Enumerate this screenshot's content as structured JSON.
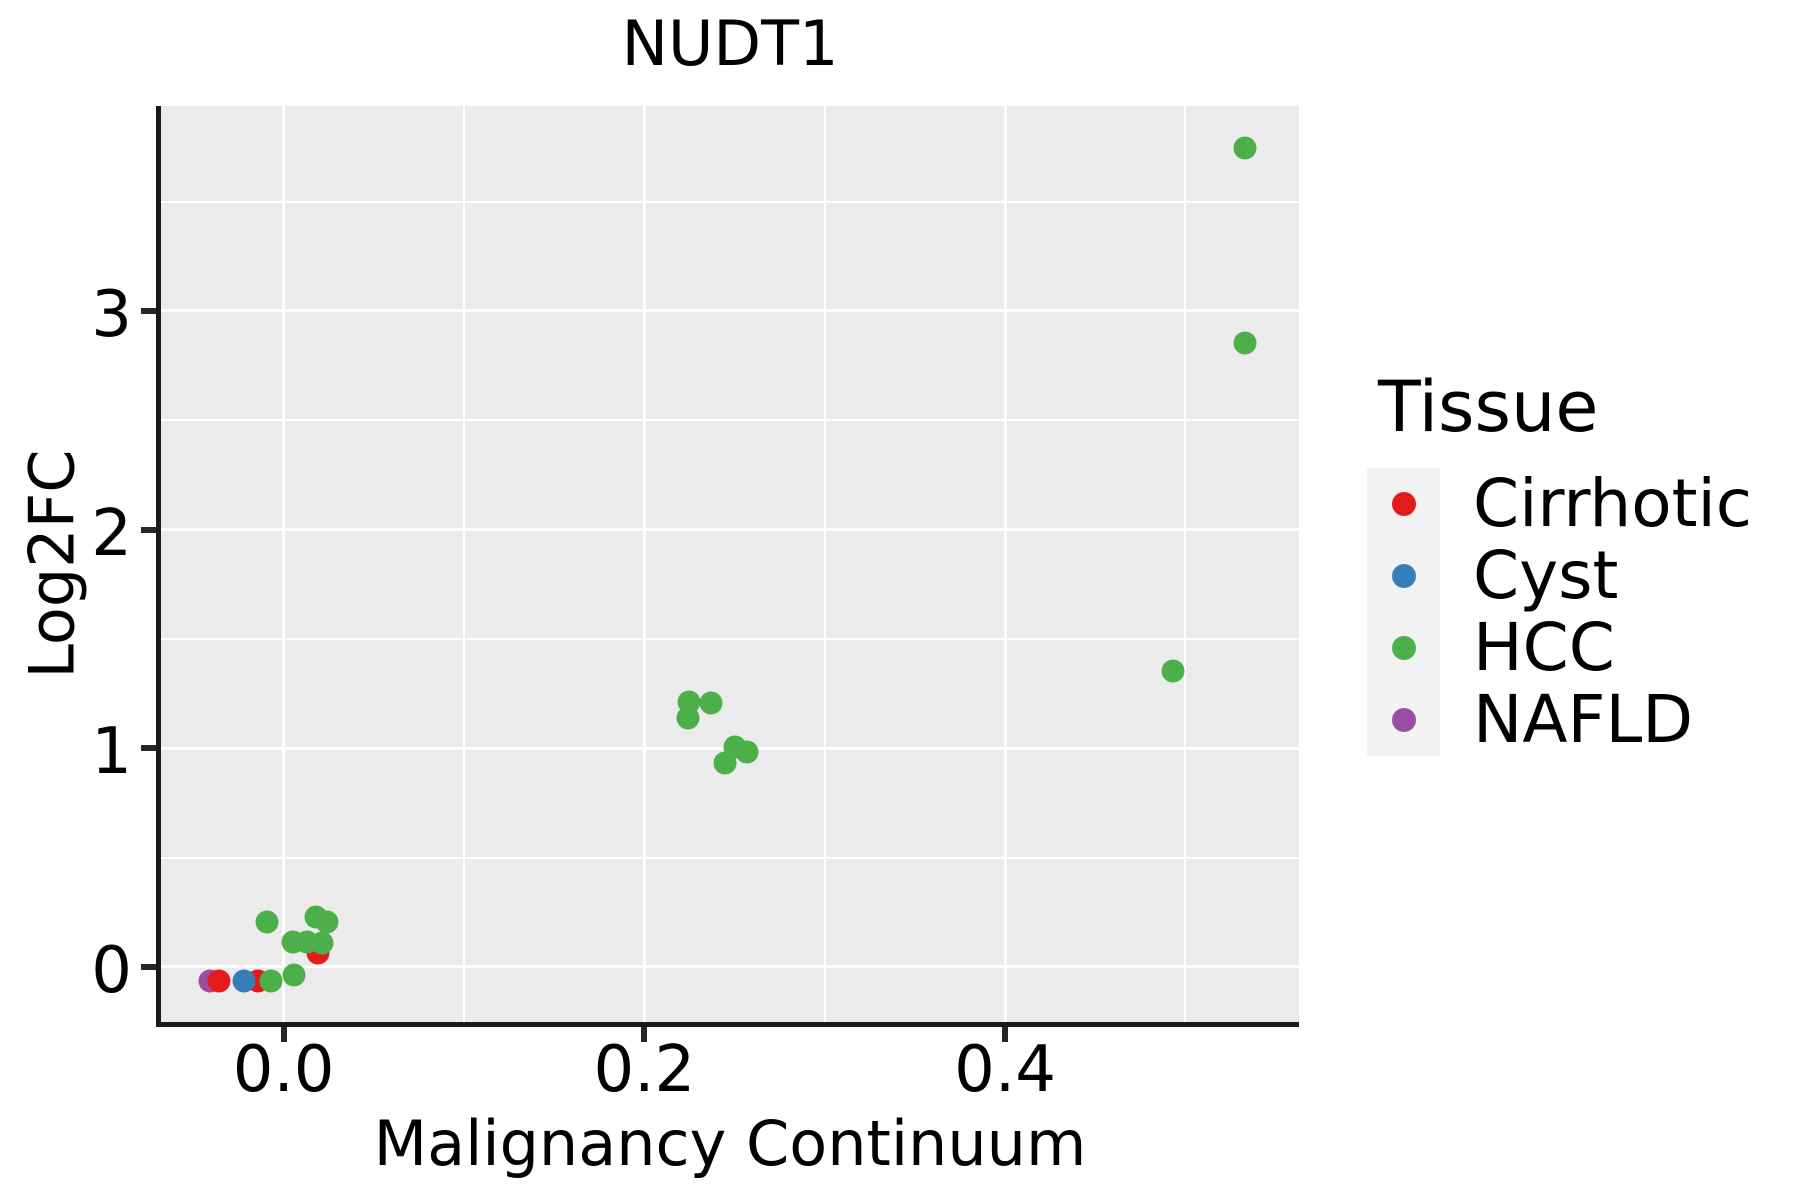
{
  "title": "NUDT1",
  "x_axis": {
    "label": "Malignancy Continuum",
    "ticks": [
      {
        "value": 0.0,
        "label": "0.0"
      },
      {
        "value": 0.2,
        "label": "0.2"
      },
      {
        "value": 0.4,
        "label": "0.4"
      }
    ]
  },
  "y_axis": {
    "label": "Log2FC",
    "ticks": [
      {
        "value": 0,
        "label": "0"
      },
      {
        "value": 1,
        "label": "1"
      },
      {
        "value": 2,
        "label": "2"
      },
      {
        "value": 3,
        "label": "3"
      }
    ]
  },
  "legend": {
    "title": "Tissue",
    "items": [
      {
        "label": "Cirrhotic",
        "color": "#E41A1C"
      },
      {
        "label": "Cyst",
        "color": "#377EB8"
      },
      {
        "label": "HCC",
        "color": "#4DAF4A"
      },
      {
        "label": "NAFLD",
        "color": "#984EA3"
      }
    ]
  },
  "colors": {
    "panel_background": "#EBEBEB",
    "gridline": "#FFFFFF",
    "axis_spine": "#1A1A1A",
    "legend_key_background": "#F2F2F2",
    "cirrhotic": "#E41A1C",
    "cyst": "#377EB8",
    "hcc": "#4DAF4A",
    "nafld": "#984EA3"
  },
  "chart_data": {
    "type": "scatter",
    "title": "NUDT1",
    "xlabel": "Malignancy Continuum",
    "ylabel": "Log2FC",
    "x_range": [
      -0.068,
      0.563
    ],
    "y_range": [
      -0.252,
      3.937
    ],
    "grid": {
      "on": true,
      "x_major": [
        0.0,
        0.2,
        0.4
      ],
      "x_minor": [
        0.1,
        0.3,
        0.5
      ],
      "y_major": [
        0,
        1,
        2,
        3
      ],
      "y_minor": [
        0.5,
        1.5,
        2.5,
        3.5
      ]
    },
    "legend_position": "right",
    "draw_order": [
      "NAFLD",
      "Cirrhotic",
      "Cyst",
      "HCC"
    ],
    "series": [
      {
        "name": "Cirrhotic",
        "color": "#E41A1C",
        "points": [
          [
            -0.036,
            -0.064
          ],
          [
            -0.014,
            -0.064
          ],
          [
            0.019,
            0.062
          ]
        ]
      },
      {
        "name": "Cyst",
        "color": "#377EB8",
        "points": [
          [
            -0.022,
            -0.064
          ]
        ]
      },
      {
        "name": "HCC",
        "color": "#4DAF4A",
        "points": [
          [
            -0.009,
            0.206
          ],
          [
            0.018,
            0.229
          ],
          [
            0.024,
            0.206
          ],
          [
            0.005,
            0.114
          ],
          [
            0.013,
            0.114
          ],
          [
            0.021,
            0.11
          ],
          [
            0.006,
            -0.037
          ],
          [
            -0.007,
            -0.064
          ],
          [
            0.225,
            1.212
          ],
          [
            0.237,
            1.207
          ],
          [
            0.224,
            1.138
          ],
          [
            0.25,
            1.006
          ],
          [
            0.257,
            0.983
          ],
          [
            0.245,
            0.933
          ],
          [
            0.493,
            1.353
          ],
          [
            0.533,
            2.853
          ],
          [
            0.533,
            3.745
          ]
        ]
      },
      {
        "name": "NAFLD",
        "color": "#984EA3",
        "points": [
          [
            -0.041,
            -0.064
          ]
        ]
      }
    ]
  }
}
